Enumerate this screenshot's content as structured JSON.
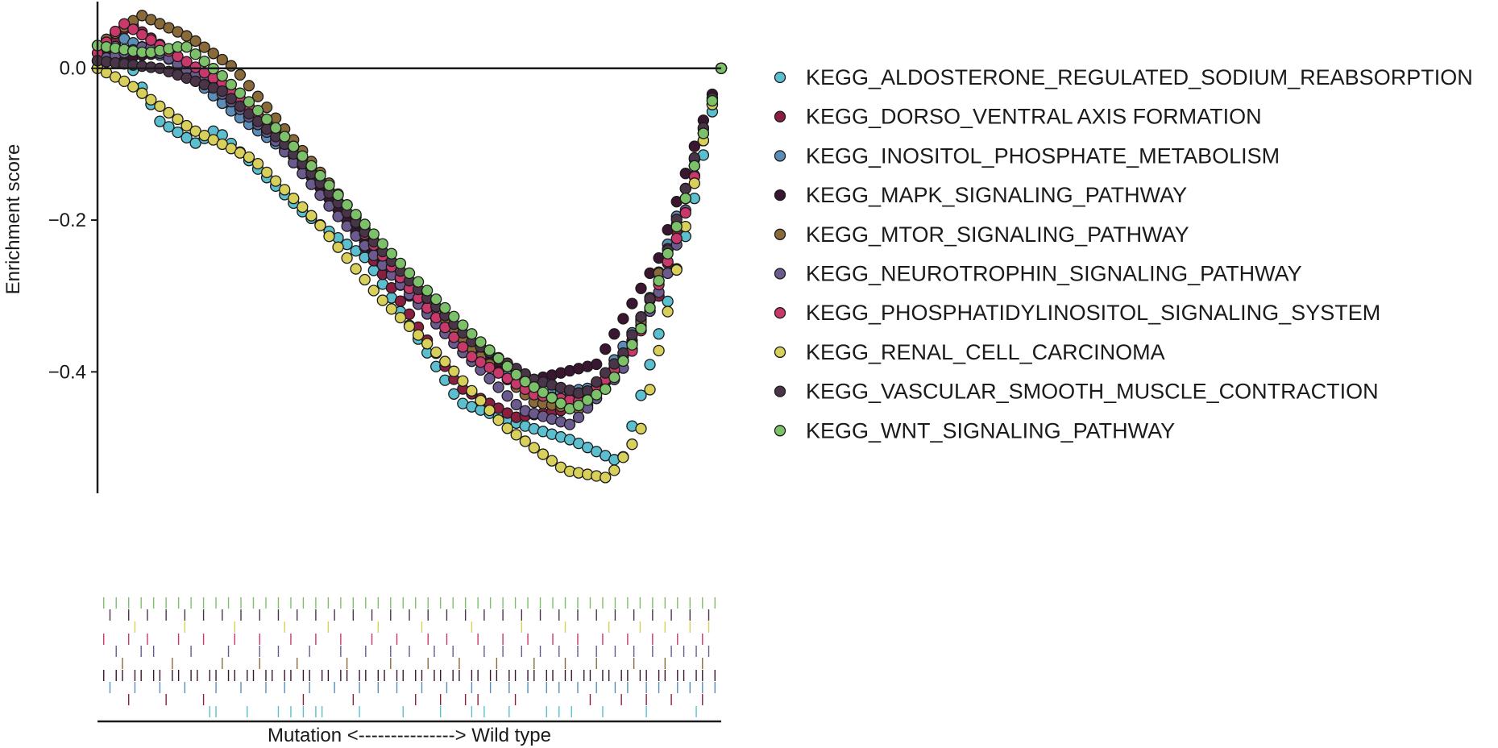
{
  "chart_data": {
    "type": "scatter",
    "title": "",
    "ylabel": "Enrichment score",
    "xlabel": "Mutation <---------------> Wild type",
    "ylim": [
      -0.56,
      0.09
    ],
    "xlim": [
      0,
      1
    ],
    "yticks": [
      "0.0",
      "−0.2",
      "−0.4"
    ],
    "ytick_values": [
      0.0,
      -0.2,
      -0.4
    ],
    "legend_position": "right",
    "series": [
      {
        "name": "KEGG_ALDOSTERONE_REGULATED_SODIUM_REABSORPTION",
        "color": "#5bbfcf",
        "points": [
          [
            0.0,
            0.0
          ],
          [
            0.03,
            0.04
          ],
          [
            0.1,
            -0.07
          ],
          [
            0.16,
            -0.1
          ],
          [
            0.19,
            -0.08
          ],
          [
            0.33,
            -0.19
          ],
          [
            0.43,
            -0.25
          ],
          [
            0.58,
            -0.44
          ],
          [
            0.68,
            -0.47
          ],
          [
            0.76,
            -0.49
          ],
          [
            0.84,
            -0.52
          ],
          [
            0.9,
            -0.35
          ],
          [
            0.95,
            -0.2
          ],
          [
            1.0,
            0.0
          ]
        ],
        "hits": [
          0.18,
          0.19,
          0.24,
          0.29,
          0.31,
          0.33,
          0.35,
          0.36,
          0.42,
          0.49,
          0.55,
          0.6,
          0.62,
          0.66,
          0.72,
          0.74,
          0.76,
          0.81,
          0.88,
          0.96
        ]
      },
      {
        "name": "KEGG_DORSO_VENTRAL AXIS FORMATION",
        "color": "#8b1e3f",
        "points": [
          [
            0.0,
            0.0
          ],
          [
            0.05,
            0.06
          ],
          [
            0.12,
            0.02
          ],
          [
            0.2,
            -0.04
          ],
          [
            0.3,
            -0.1
          ],
          [
            0.4,
            -0.2
          ],
          [
            0.48,
            -0.3
          ],
          [
            0.58,
            -0.42
          ],
          [
            0.67,
            -0.46
          ],
          [
            0.75,
            -0.45
          ],
          [
            0.82,
            -0.41
          ],
          [
            0.9,
            -0.3
          ],
          [
            0.96,
            -0.12
          ],
          [
            1.0,
            0.0
          ]
        ],
        "hits": [
          0.05,
          0.11,
          0.17,
          0.33,
          0.41,
          0.51,
          0.55,
          0.59,
          0.61,
          0.67,
          0.79,
          0.84,
          0.88,
          0.92,
          0.97
        ]
      },
      {
        "name": "KEGG_INOSITOL_PHOSPHATE_METABOLISM",
        "color": "#5b8db8",
        "points": [
          [
            0.0,
            0.0
          ],
          [
            0.04,
            0.04
          ],
          [
            0.12,
            0.01
          ],
          [
            0.22,
            -0.06
          ],
          [
            0.32,
            -0.12
          ],
          [
            0.42,
            -0.22
          ],
          [
            0.52,
            -0.31
          ],
          [
            0.62,
            -0.39
          ],
          [
            0.72,
            -0.43
          ],
          [
            0.8,
            -0.42
          ],
          [
            0.88,
            -0.32
          ],
          [
            0.95,
            -0.14
          ],
          [
            1.0,
            0.0
          ]
        ],
        "hits": [
          0.02,
          0.06,
          0.1,
          0.14,
          0.19,
          0.23,
          0.27,
          0.3,
          0.34,
          0.38,
          0.42,
          0.45,
          0.48,
          0.52,
          0.56,
          0.6,
          0.63,
          0.66,
          0.69,
          0.72,
          0.74,
          0.77,
          0.8,
          0.83,
          0.85,
          0.88,
          0.9,
          0.93,
          0.95,
          0.97,
          0.99
        ]
      },
      {
        "name": "KEGG_MAPK_SIGNALING_PATHWAY",
        "color": "#3a1630",
        "points": [
          [
            0.0,
            0.01
          ],
          [
            0.1,
            0.02
          ],
          [
            0.2,
            -0.03
          ],
          [
            0.3,
            -0.1
          ],
          [
            0.4,
            -0.2
          ],
          [
            0.5,
            -0.3
          ],
          [
            0.6,
            -0.37
          ],
          [
            0.7,
            -0.41
          ],
          [
            0.75,
            -0.4
          ],
          [
            0.8,
            -0.39
          ],
          [
            0.85,
            -0.32
          ],
          [
            0.9,
            -0.25
          ],
          [
            0.95,
            -0.12
          ],
          [
            1.0,
            0.0
          ]
        ],
        "hits": [
          0.01,
          0.03,
          0.04,
          0.06,
          0.07,
          0.09,
          0.1,
          0.12,
          0.13,
          0.15,
          0.16,
          0.18,
          0.19,
          0.21,
          0.22,
          0.24,
          0.25,
          0.27,
          0.28,
          0.3,
          0.31,
          0.33,
          0.34,
          0.36,
          0.37,
          0.39,
          0.4,
          0.42,
          0.43,
          0.45,
          0.46,
          0.48,
          0.49,
          0.51,
          0.52,
          0.54,
          0.55,
          0.57,
          0.58,
          0.6,
          0.61,
          0.63,
          0.64,
          0.66,
          0.67,
          0.69,
          0.7,
          0.72,
          0.73,
          0.75,
          0.76,
          0.78,
          0.79,
          0.81,
          0.82,
          0.84,
          0.85,
          0.87,
          0.88,
          0.9,
          0.91,
          0.93,
          0.94,
          0.96,
          0.97,
          0.99
        ]
      },
      {
        "name": "KEGG_MTOR_SIGNALING_PATHWAY",
        "color": "#8b6a3a",
        "points": [
          [
            0.0,
            0.03
          ],
          [
            0.07,
            0.07
          ],
          [
            0.15,
            0.04
          ],
          [
            0.22,
            0.0
          ],
          [
            0.3,
            -0.08
          ],
          [
            0.4,
            -0.18
          ],
          [
            0.5,
            -0.29
          ],
          [
            0.6,
            -0.37
          ],
          [
            0.7,
            -0.44
          ],
          [
            0.78,
            -0.45
          ],
          [
            0.86,
            -0.36
          ],
          [
            0.94,
            -0.18
          ],
          [
            1.0,
            0.0
          ]
        ],
        "hits": [
          0.04,
          0.12,
          0.2,
          0.26,
          0.32,
          0.4,
          0.47,
          0.53,
          0.58,
          0.64,
          0.7,
          0.75,
          0.8,
          0.86,
          0.91,
          0.97
        ]
      },
      {
        "name": "KEGG_NEUROTROPHIN_SIGNALING_PATHWAY",
        "color": "#6a5a8e",
        "points": [
          [
            0.0,
            0.01
          ],
          [
            0.08,
            0.03
          ],
          [
            0.18,
            -0.02
          ],
          [
            0.28,
            -0.09
          ],
          [
            0.38,
            -0.19
          ],
          [
            0.48,
            -0.28
          ],
          [
            0.58,
            -0.37
          ],
          [
            0.68,
            -0.45
          ],
          [
            0.76,
            -0.47
          ],
          [
            0.84,
            -0.4
          ],
          [
            0.92,
            -0.26
          ],
          [
            0.97,
            -0.1
          ],
          [
            1.0,
            0.0
          ]
        ],
        "hits": [
          0.03,
          0.07,
          0.09,
          0.15,
          0.21,
          0.26,
          0.29,
          0.34,
          0.39,
          0.43,
          0.47,
          0.5,
          0.54,
          0.57,
          0.62,
          0.65,
          0.68,
          0.71,
          0.74,
          0.77,
          0.8,
          0.83,
          0.86,
          0.89,
          0.92,
          0.94,
          0.96,
          0.98
        ]
      },
      {
        "name": "KEGG_PHOSPHATIDYLINOSITOL_SIGNALING_SYSTEM",
        "color": "#c9386b",
        "points": [
          [
            0.0,
            0.02
          ],
          [
            0.04,
            0.06
          ],
          [
            0.1,
            0.03
          ],
          [
            0.2,
            -0.02
          ],
          [
            0.3,
            -0.09
          ],
          [
            0.4,
            -0.19
          ],
          [
            0.5,
            -0.29
          ],
          [
            0.6,
            -0.38
          ],
          [
            0.7,
            -0.43
          ],
          [
            0.78,
            -0.44
          ],
          [
            0.86,
            -0.37
          ],
          [
            0.94,
            -0.2
          ],
          [
            1.0,
            0.0
          ]
        ],
        "hits": [
          0.01,
          0.05,
          0.08,
          0.13,
          0.17,
          0.22,
          0.26,
          0.31,
          0.35,
          0.39,
          0.44,
          0.48,
          0.53,
          0.56,
          0.61,
          0.65,
          0.69,
          0.73,
          0.77,
          0.81,
          0.85,
          0.89,
          0.93,
          0.97
        ]
      },
      {
        "name": "KEGG_RENAL_CELL_CARCINOMA",
        "color": "#d8d05a",
        "points": [
          [
            0.0,
            0.0
          ],
          [
            0.05,
            -0.02
          ],
          [
            0.15,
            -0.08
          ],
          [
            0.25,
            -0.12
          ],
          [
            0.35,
            -0.2
          ],
          [
            0.45,
            -0.3
          ],
          [
            0.55,
            -0.38
          ],
          [
            0.65,
            -0.47
          ],
          [
            0.75,
            -0.53
          ],
          [
            0.82,
            -0.54
          ],
          [
            0.87,
            -0.48
          ],
          [
            0.92,
            -0.3
          ],
          [
            0.97,
            -0.1
          ],
          [
            1.0,
            0.0
          ]
        ],
        "hits": [
          0.06,
          0.14,
          0.22,
          0.3,
          0.37,
          0.45,
          0.52,
          0.6,
          0.68,
          0.75,
          0.82,
          0.87,
          0.91,
          0.95,
          0.98
        ]
      },
      {
        "name": "KEGG_VASCULAR_SMOOTH_MUSCLE_CONTRACTION",
        "color": "#4a3548",
        "points": [
          [
            0.0,
            0.01
          ],
          [
            0.1,
            0.0
          ],
          [
            0.2,
            -0.03
          ],
          [
            0.3,
            -0.1
          ],
          [
            0.4,
            -0.19
          ],
          [
            0.5,
            -0.28
          ],
          [
            0.6,
            -0.36
          ],
          [
            0.7,
            -0.41
          ],
          [
            0.78,
            -0.43
          ],
          [
            0.84,
            -0.38
          ],
          [
            0.9,
            -0.28
          ],
          [
            0.96,
            -0.11
          ],
          [
            1.0,
            0.0
          ]
        ],
        "hits": [
          0.02,
          0.05,
          0.08,
          0.11,
          0.14,
          0.17,
          0.2,
          0.23,
          0.26,
          0.29,
          0.32,
          0.35,
          0.38,
          0.41,
          0.44,
          0.47,
          0.5,
          0.53,
          0.56,
          0.59,
          0.62,
          0.65,
          0.68,
          0.71,
          0.74,
          0.77,
          0.8,
          0.83,
          0.86,
          0.89,
          0.92,
          0.95,
          0.98
        ]
      },
      {
        "name": "KEGG_WNT_SIGNALING_PATHWAY",
        "color": "#7cc16a",
        "points": [
          [
            0.0,
            0.03
          ],
          [
            0.08,
            0.02
          ],
          [
            0.14,
            0.03
          ],
          [
            0.2,
            -0.01
          ],
          [
            0.3,
            -0.09
          ],
          [
            0.4,
            -0.18
          ],
          [
            0.5,
            -0.27
          ],
          [
            0.6,
            -0.35
          ],
          [
            0.68,
            -0.41
          ],
          [
            0.76,
            -0.45
          ],
          [
            0.82,
            -0.42
          ],
          [
            0.88,
            -0.33
          ],
          [
            0.94,
            -0.18
          ],
          [
            0.98,
            -0.06
          ],
          [
            1.0,
            0.0
          ]
        ],
        "hits": [
          0.01,
          0.03,
          0.05,
          0.07,
          0.09,
          0.11,
          0.13,
          0.15,
          0.17,
          0.19,
          0.21,
          0.23,
          0.25,
          0.27,
          0.29,
          0.31,
          0.33,
          0.35,
          0.37,
          0.39,
          0.41,
          0.43,
          0.45,
          0.47,
          0.49,
          0.51,
          0.53,
          0.55,
          0.57,
          0.59,
          0.61,
          0.63,
          0.65,
          0.67,
          0.69,
          0.71,
          0.73,
          0.75,
          0.77,
          0.79,
          0.81,
          0.83,
          0.85,
          0.87,
          0.89,
          0.91,
          0.93,
          0.95,
          0.97,
          0.99
        ]
      }
    ]
  }
}
